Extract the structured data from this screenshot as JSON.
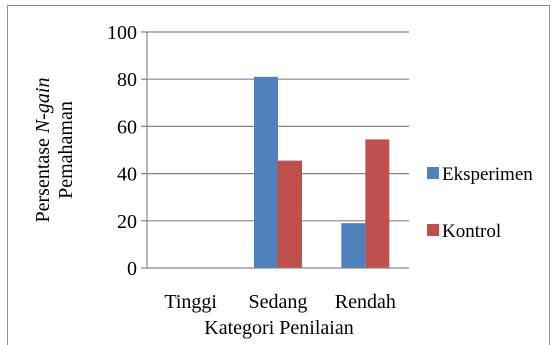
{
  "chart_data": {
    "type": "bar",
    "categories": [
      "Tinggi",
      "Sedang",
      "Rendah"
    ],
    "series": [
      {
        "name": "Eksperimen",
        "values": [
          0,
          81,
          19
        ],
        "color": "#4f81bd"
      },
      {
        "name": "Kontrol",
        "values": [
          0,
          45.5,
          54.5
        ],
        "color": "#c0504d"
      }
    ],
    "xlabel": "Kategori Penilaian",
    "ylabel_line1_prefix": "Persentase ",
    "ylabel_line1_italic": "N-gain",
    "ylabel_line2": "Pemahaman",
    "ylim": [
      0,
      100
    ],
    "yticks": [
      0,
      20,
      40,
      60,
      80,
      100
    ],
    "ytick_labels": [
      "0",
      "20",
      "40",
      "60",
      "80",
      "100"
    ],
    "grid": true,
    "legend_position": "right"
  }
}
